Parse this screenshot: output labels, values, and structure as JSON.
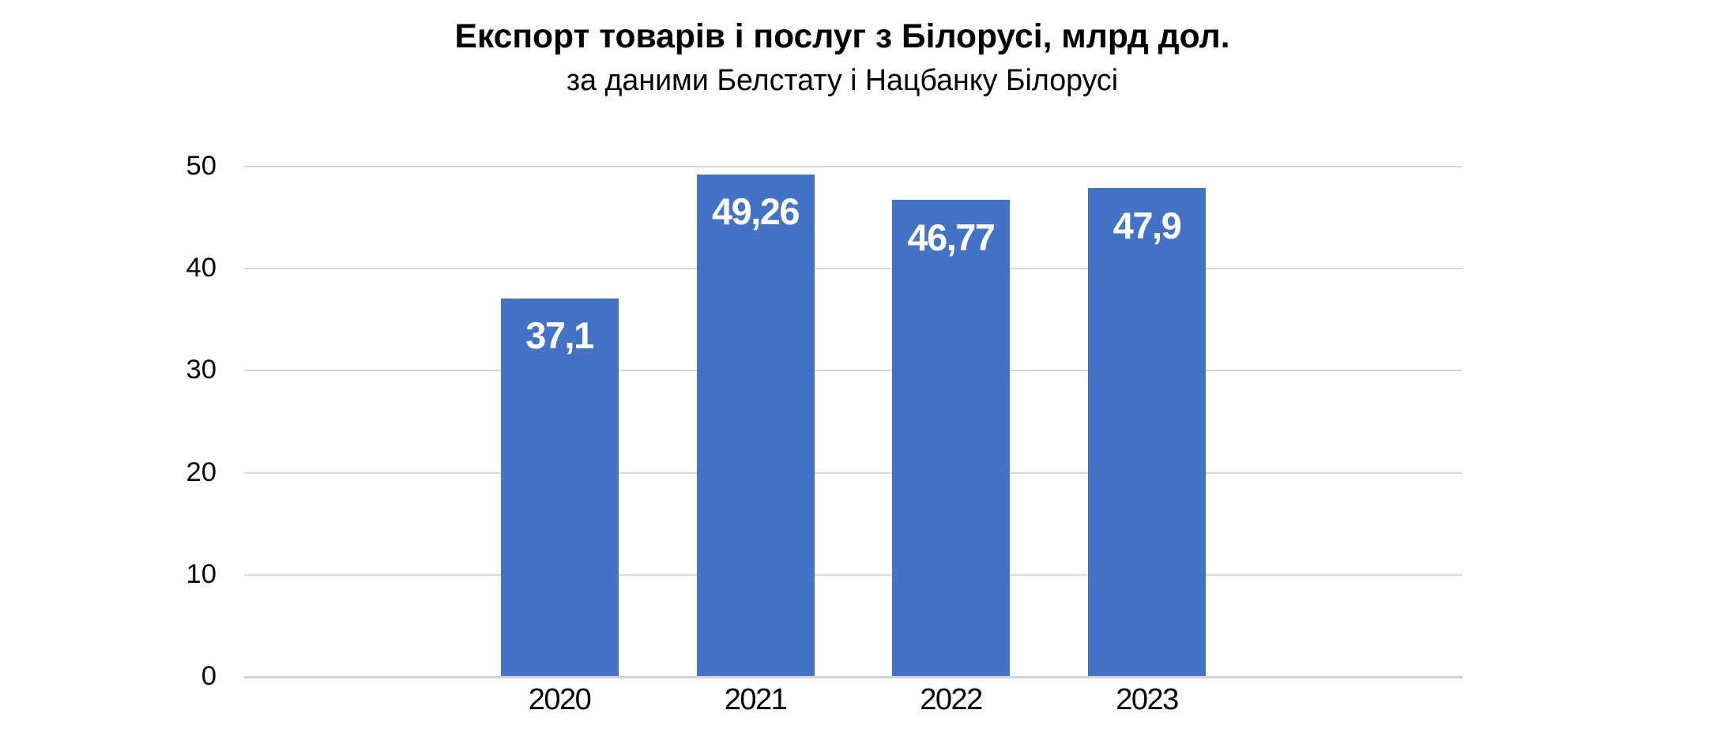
{
  "chart_data": {
    "type": "bar",
    "title": "Експорт товарів і послуг з Білорусі, млрд дол.",
    "subtitle": "за даними Белстату і Нацбанку Білорусі",
    "categories": [
      "2020",
      "2021",
      "2022",
      "2023"
    ],
    "values": [
      37.1,
      49.26,
      46.77,
      47.9
    ],
    "value_labels": [
      "37,1",
      "49,26",
      "46,77",
      "47,9"
    ],
    "xlabel": "",
    "ylabel": "",
    "ylim": [
      0,
      50
    ],
    "yticks": [
      0,
      10,
      20,
      30,
      40,
      50
    ],
    "ytick_labels": [
      "0",
      "10",
      "20",
      "30",
      "40",
      "50"
    ],
    "grid": "horizontal",
    "legend": "none",
    "colors": {
      "bar": "#4472C4",
      "bar_value_label": "#ffffff",
      "gridline": "#d9d9d9",
      "axis_line": "#d3d3d3",
      "text": "#000000",
      "background": "#ffffff"
    }
  }
}
